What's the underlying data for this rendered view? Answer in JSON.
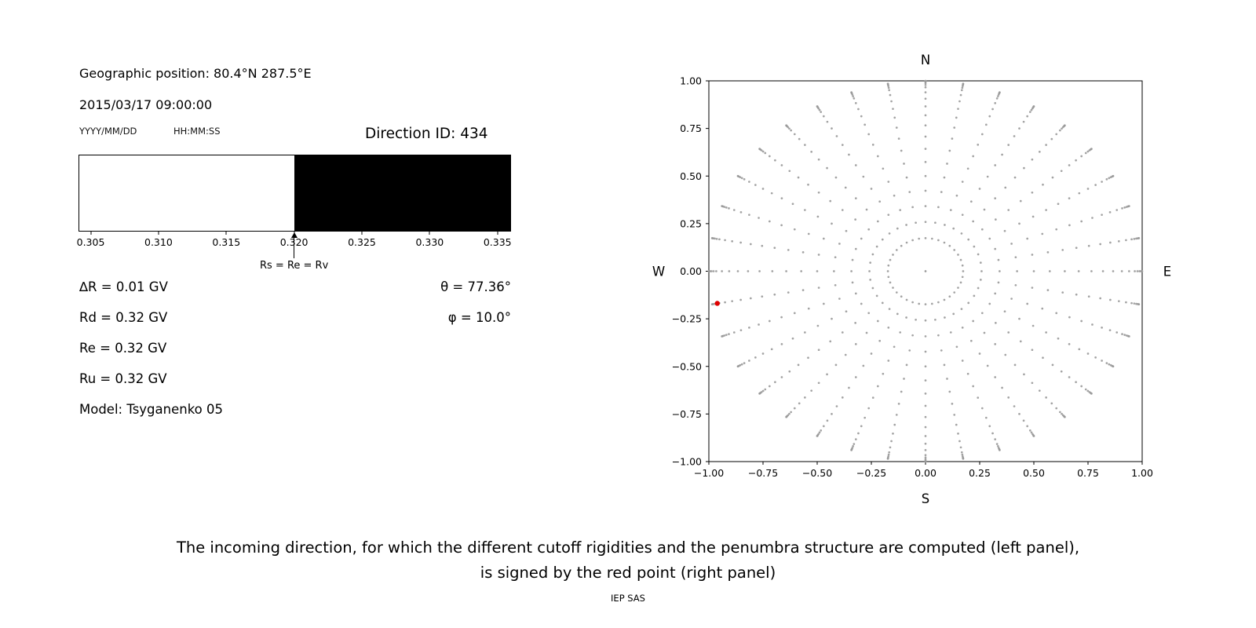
{
  "left_panel": {
    "geo_position": "Geographic position: 80.4°N 287.5°E",
    "datetime": "2015/03/17 09:00:00",
    "date_format_hint": "YYYY/MM/DD",
    "time_format_hint": "HH:MM:SS",
    "direction_id": "Direction ID: 434",
    "penumbra_bar": {
      "range_min": 0.3041,
      "range_max": 0.336,
      "boundary_value": 0.32,
      "white_color": "#ffffff",
      "black_color": "#000000",
      "tick_values": [
        0.305,
        0.31,
        0.315,
        0.32,
        0.325,
        0.33,
        0.335
      ],
      "tick_labels": [
        "0.305",
        "0.310",
        "0.315",
        "0.320",
        "0.325",
        "0.330",
        "0.335"
      ],
      "arrow_label": "Rs = Re = Rv"
    },
    "params": [
      "∆R = 0.01 GV",
      "Rd = 0.32 GV",
      "Re = 0.32 GV",
      "Ru = 0.32 GV",
      "Model: Tsyganenko 05"
    ],
    "angles": [
      "θ = 77.36°",
      "φ = 10.0°"
    ]
  },
  "chart_data": {
    "type": "scatter",
    "title": "",
    "xlim": [
      -1,
      1
    ],
    "ylim": [
      -1,
      1
    ],
    "grid": false,
    "xtick_values": [
      -1.0,
      -0.75,
      -0.5,
      -0.25,
      0.0,
      0.25,
      0.5,
      0.75,
      1.0
    ],
    "xtick_labels": [
      "−1.00",
      "−0.75",
      "−0.50",
      "−0.25",
      "0.00",
      "0.25",
      "0.50",
      "0.75",
      "1.00"
    ],
    "ytick_values": [
      1.0,
      0.75,
      0.5,
      0.25,
      0.0,
      -0.25,
      -0.5,
      -0.75,
      -1.0
    ],
    "ytick_labels": [
      "1.00",
      "0.75",
      "0.50",
      "0.25",
      "0.00",
      "−0.25",
      "−0.50",
      "−0.75",
      "−1.00"
    ],
    "compass_labels": {
      "top": "N",
      "bottom": "S",
      "left": "W",
      "right": "E"
    },
    "dot_color": "#999999",
    "spokes": {
      "azimuth_start_deg": 0,
      "azimuth_step_deg": 10,
      "azimuth_count": 36,
      "radii": [
        0.1736,
        0.2588,
        0.342,
        0.4226,
        0.5,
        0.5736,
        0.6428,
        0.7071,
        0.766,
        0.8192,
        0.866,
        0.9063,
        0.9397,
        0.9659,
        0.9781,
        0.9877,
        0.9945,
        0.9986,
        1.0
      ]
    },
    "center_point": {
      "x": 0,
      "y": 0
    },
    "red_point": {
      "x": -0.961,
      "y": -0.169,
      "color": "#e00000"
    }
  },
  "caption": {
    "line1": "The incoming direction, for which the different cutoff rigidities and the penumbra structure are computed (left panel),",
    "line2": "is signed by the red point (right panel)",
    "credit": "IEP SAS"
  }
}
